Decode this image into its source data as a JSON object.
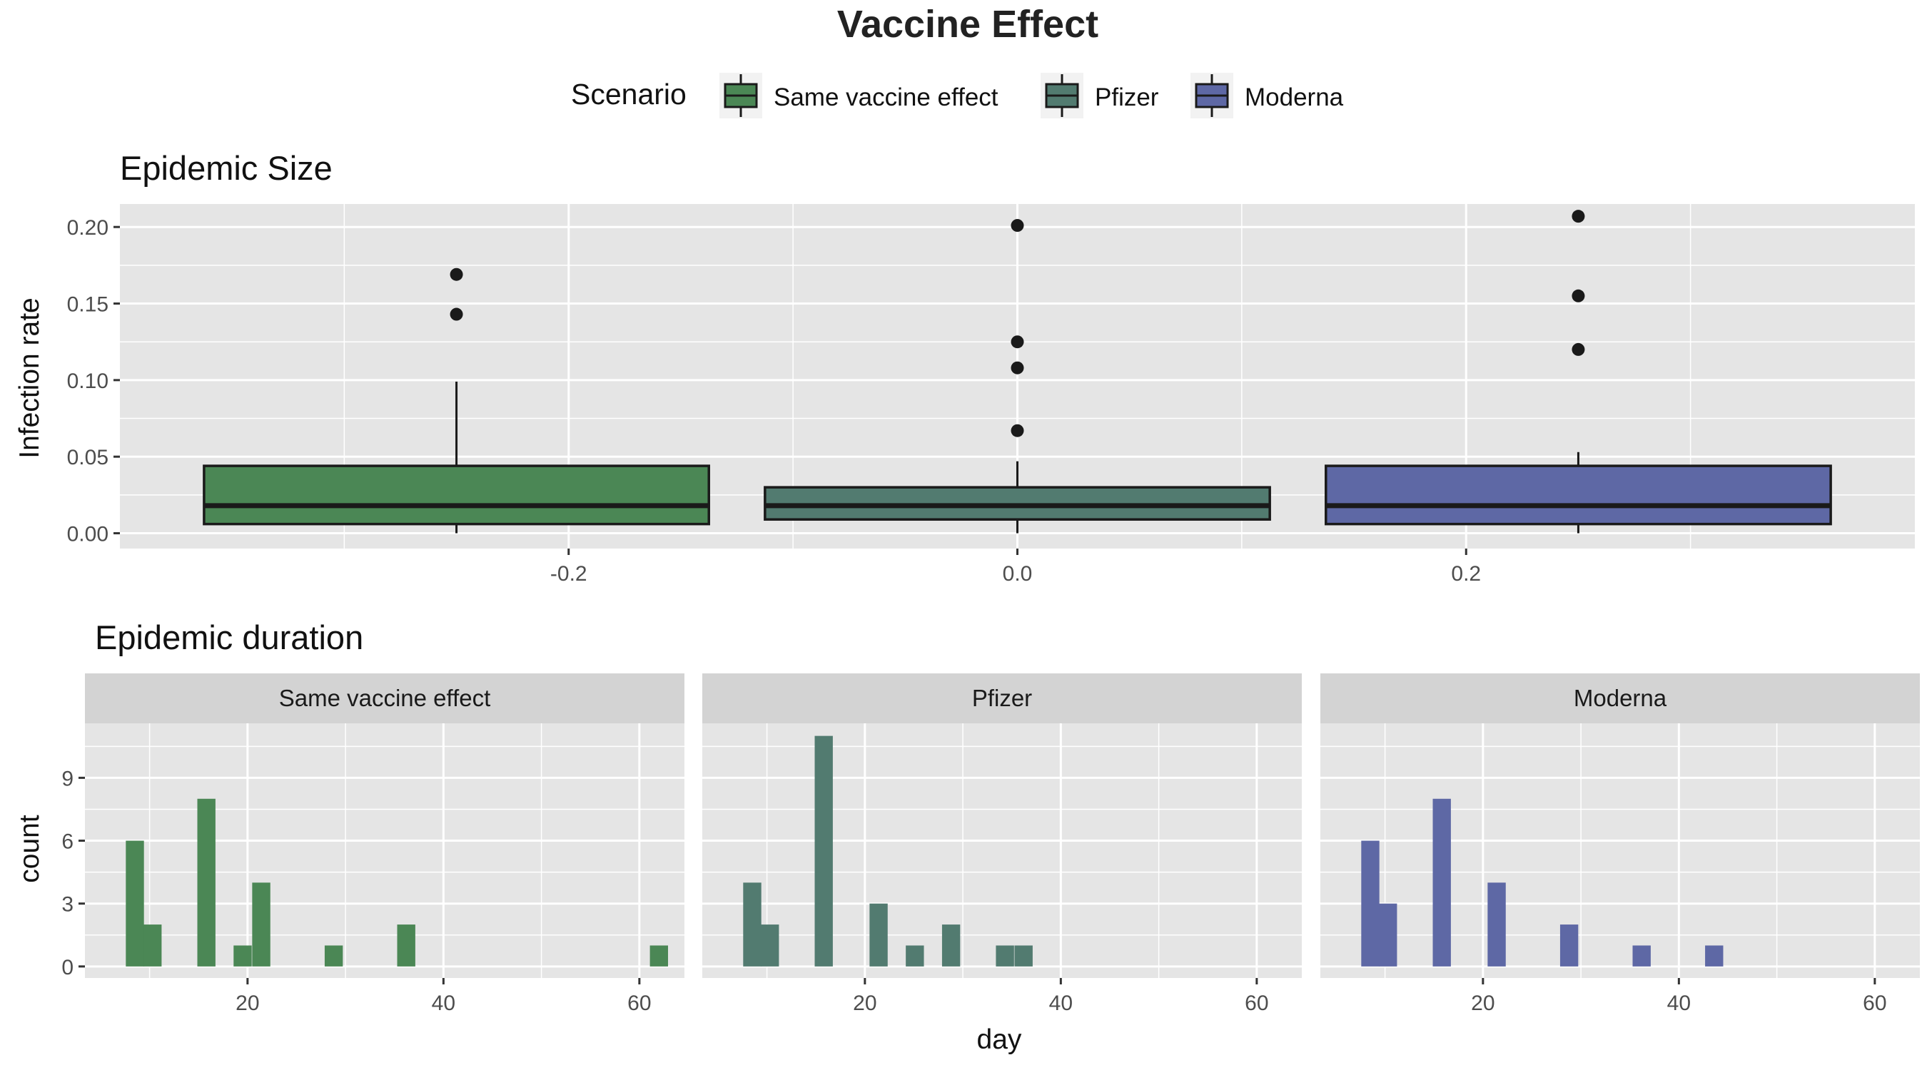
{
  "title": "Vaccine Effect",
  "legend": {
    "title": "Scenario",
    "items": [
      "Same vaccine effect",
      "Pfizer",
      "Moderna"
    ]
  },
  "colors": {
    "Same vaccine effect": "#4b8755",
    "Pfizer": "#527b70",
    "Moderna": "#5e68a5",
    "panel_bg": "#e5e5e5",
    "grid": "#ffffff",
    "strip_bg": "#d3d3d3",
    "ink": "#1a1a1a"
  },
  "chart_data": [
    {
      "type": "boxplot",
      "title": "Epidemic Size",
      "ylabel": "Infection rate",
      "xlabel": "",
      "xlim": [
        -0.4,
        0.4
      ],
      "ylim": [
        -0.01,
        0.215
      ],
      "x_ticks": [
        "-0.2",
        "0.0",
        "0.2"
      ],
      "y_ticks": [
        "0.00",
        "0.05",
        "0.10",
        "0.15",
        "0.20"
      ],
      "series": [
        {
          "name": "Same vaccine effect",
          "x": -0.25,
          "whisker_low": 0.0,
          "q1": 0.006,
          "median": 0.018,
          "q3": 0.044,
          "whisker_high": 0.099,
          "outliers": [
            0.143,
            0.169
          ]
        },
        {
          "name": "Pfizer",
          "x": 0.0,
          "whisker_low": 0.0,
          "q1": 0.009,
          "median": 0.018,
          "q3": 0.03,
          "whisker_high": 0.047,
          "outliers": [
            0.067,
            0.108,
            0.125,
            0.201
          ]
        },
        {
          "name": "Moderna",
          "x": 0.25,
          "whisker_low": 0.0,
          "q1": 0.006,
          "median": 0.018,
          "q3": 0.044,
          "whisker_high": 0.053,
          "outliers": [
            0.12,
            0.155,
            0.207
          ]
        }
      ]
    },
    {
      "type": "bar",
      "title": "Epidemic duration",
      "xlabel": "day",
      "ylabel": "count",
      "xlim": [
        3.4,
        64.6
      ],
      "ylim": [
        -0.55,
        11.6
      ],
      "x_ticks": [
        "20",
        "40",
        "60"
      ],
      "y_ticks": [
        "0",
        "3",
        "6",
        "9"
      ],
      "bin_width": 1.85,
      "facets": [
        {
          "name": "Same vaccine effect",
          "bins": [
            {
              "x": 8.5,
              "count": 6
            },
            {
              "x": 10.3,
              "count": 2
            },
            {
              "x": 15.8,
              "count": 8
            },
            {
              "x": 19.5,
              "count": 1
            },
            {
              "x": 21.4,
              "count": 4
            },
            {
              "x": 28.8,
              "count": 1
            },
            {
              "x": 36.2,
              "count": 2
            },
            {
              "x": 62.0,
              "count": 1
            }
          ]
        },
        {
          "name": "Pfizer",
          "bins": [
            {
              "x": 8.5,
              "count": 4
            },
            {
              "x": 10.3,
              "count": 2
            },
            {
              "x": 15.8,
              "count": 11
            },
            {
              "x": 21.4,
              "count": 3
            },
            {
              "x": 25.1,
              "count": 1
            },
            {
              "x": 28.8,
              "count": 2
            },
            {
              "x": 34.3,
              "count": 1
            },
            {
              "x": 36.2,
              "count": 1
            }
          ]
        },
        {
          "name": "Moderna",
          "bins": [
            {
              "x": 8.5,
              "count": 6
            },
            {
              "x": 10.3,
              "count": 3
            },
            {
              "x": 15.8,
              "count": 8
            },
            {
              "x": 21.4,
              "count": 4
            },
            {
              "x": 28.8,
              "count": 2
            },
            {
              "x": 36.2,
              "count": 1
            },
            {
              "x": 43.6,
              "count": 1
            }
          ]
        }
      ]
    }
  ]
}
